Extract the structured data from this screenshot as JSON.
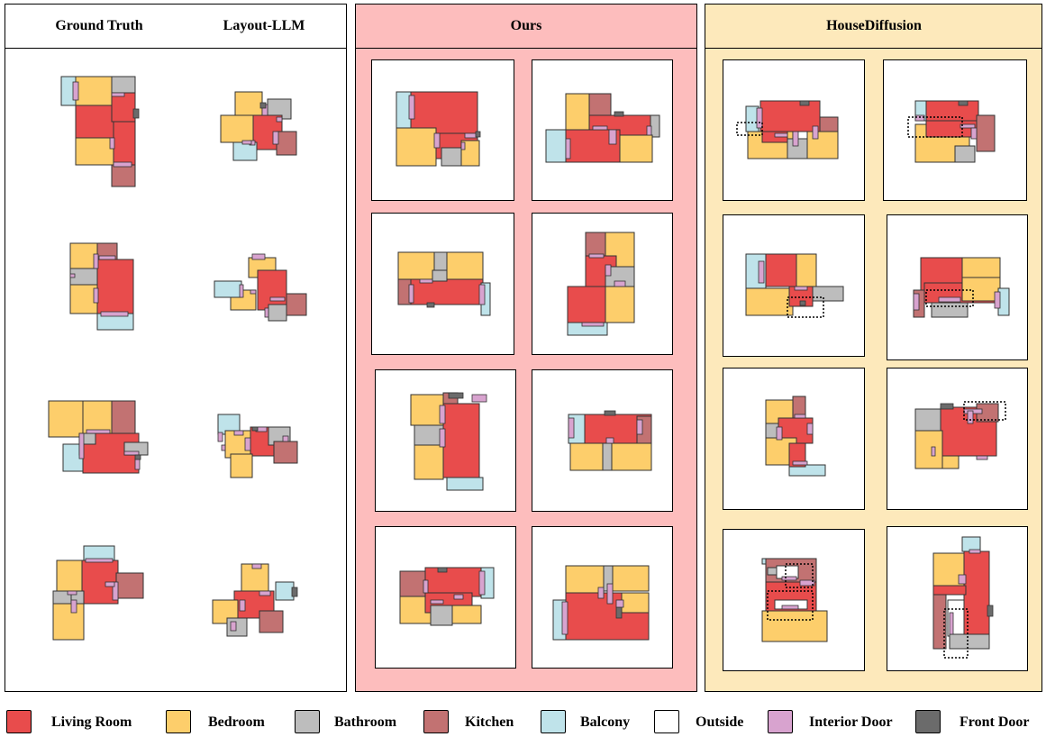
{
  "colors": {
    "living": "#e84c4c",
    "bedroom": "#fdce6b",
    "bathroom": "#bdbdbd",
    "kitchen": "#c27272",
    "balcony": "#bfe3ea",
    "outside": "#ffffff",
    "idoor": "#d8a3cf",
    "fdoor": "#6b6b6b",
    "ours_bg": "#fdbdbd",
    "hd_bg": "#fde9bb"
  },
  "columns": {
    "ground_truth": "Ground Truth",
    "layout_llm": "Layout-LLM",
    "ours": "Ours",
    "housediffusion": "HouseDiffusion"
  },
  "legend": [
    {
      "label": "Living Room",
      "color": "#e84c4c"
    },
    {
      "label": "Bedroom",
      "color": "#fdce6b"
    },
    {
      "label": "Bathroom",
      "color": "#bdbdbd"
    },
    {
      "label": "Kitchen",
      "color": "#c27272"
    },
    {
      "label": "Balcony",
      "color": "#bfe3ea"
    },
    {
      "label": "Outside",
      "color": "#ffffff"
    },
    {
      "label": "Interior Door",
      "color": "#d8a3cf"
    },
    {
      "label": "Front Door",
      "color": "#6b6b6b"
    }
  ]
}
